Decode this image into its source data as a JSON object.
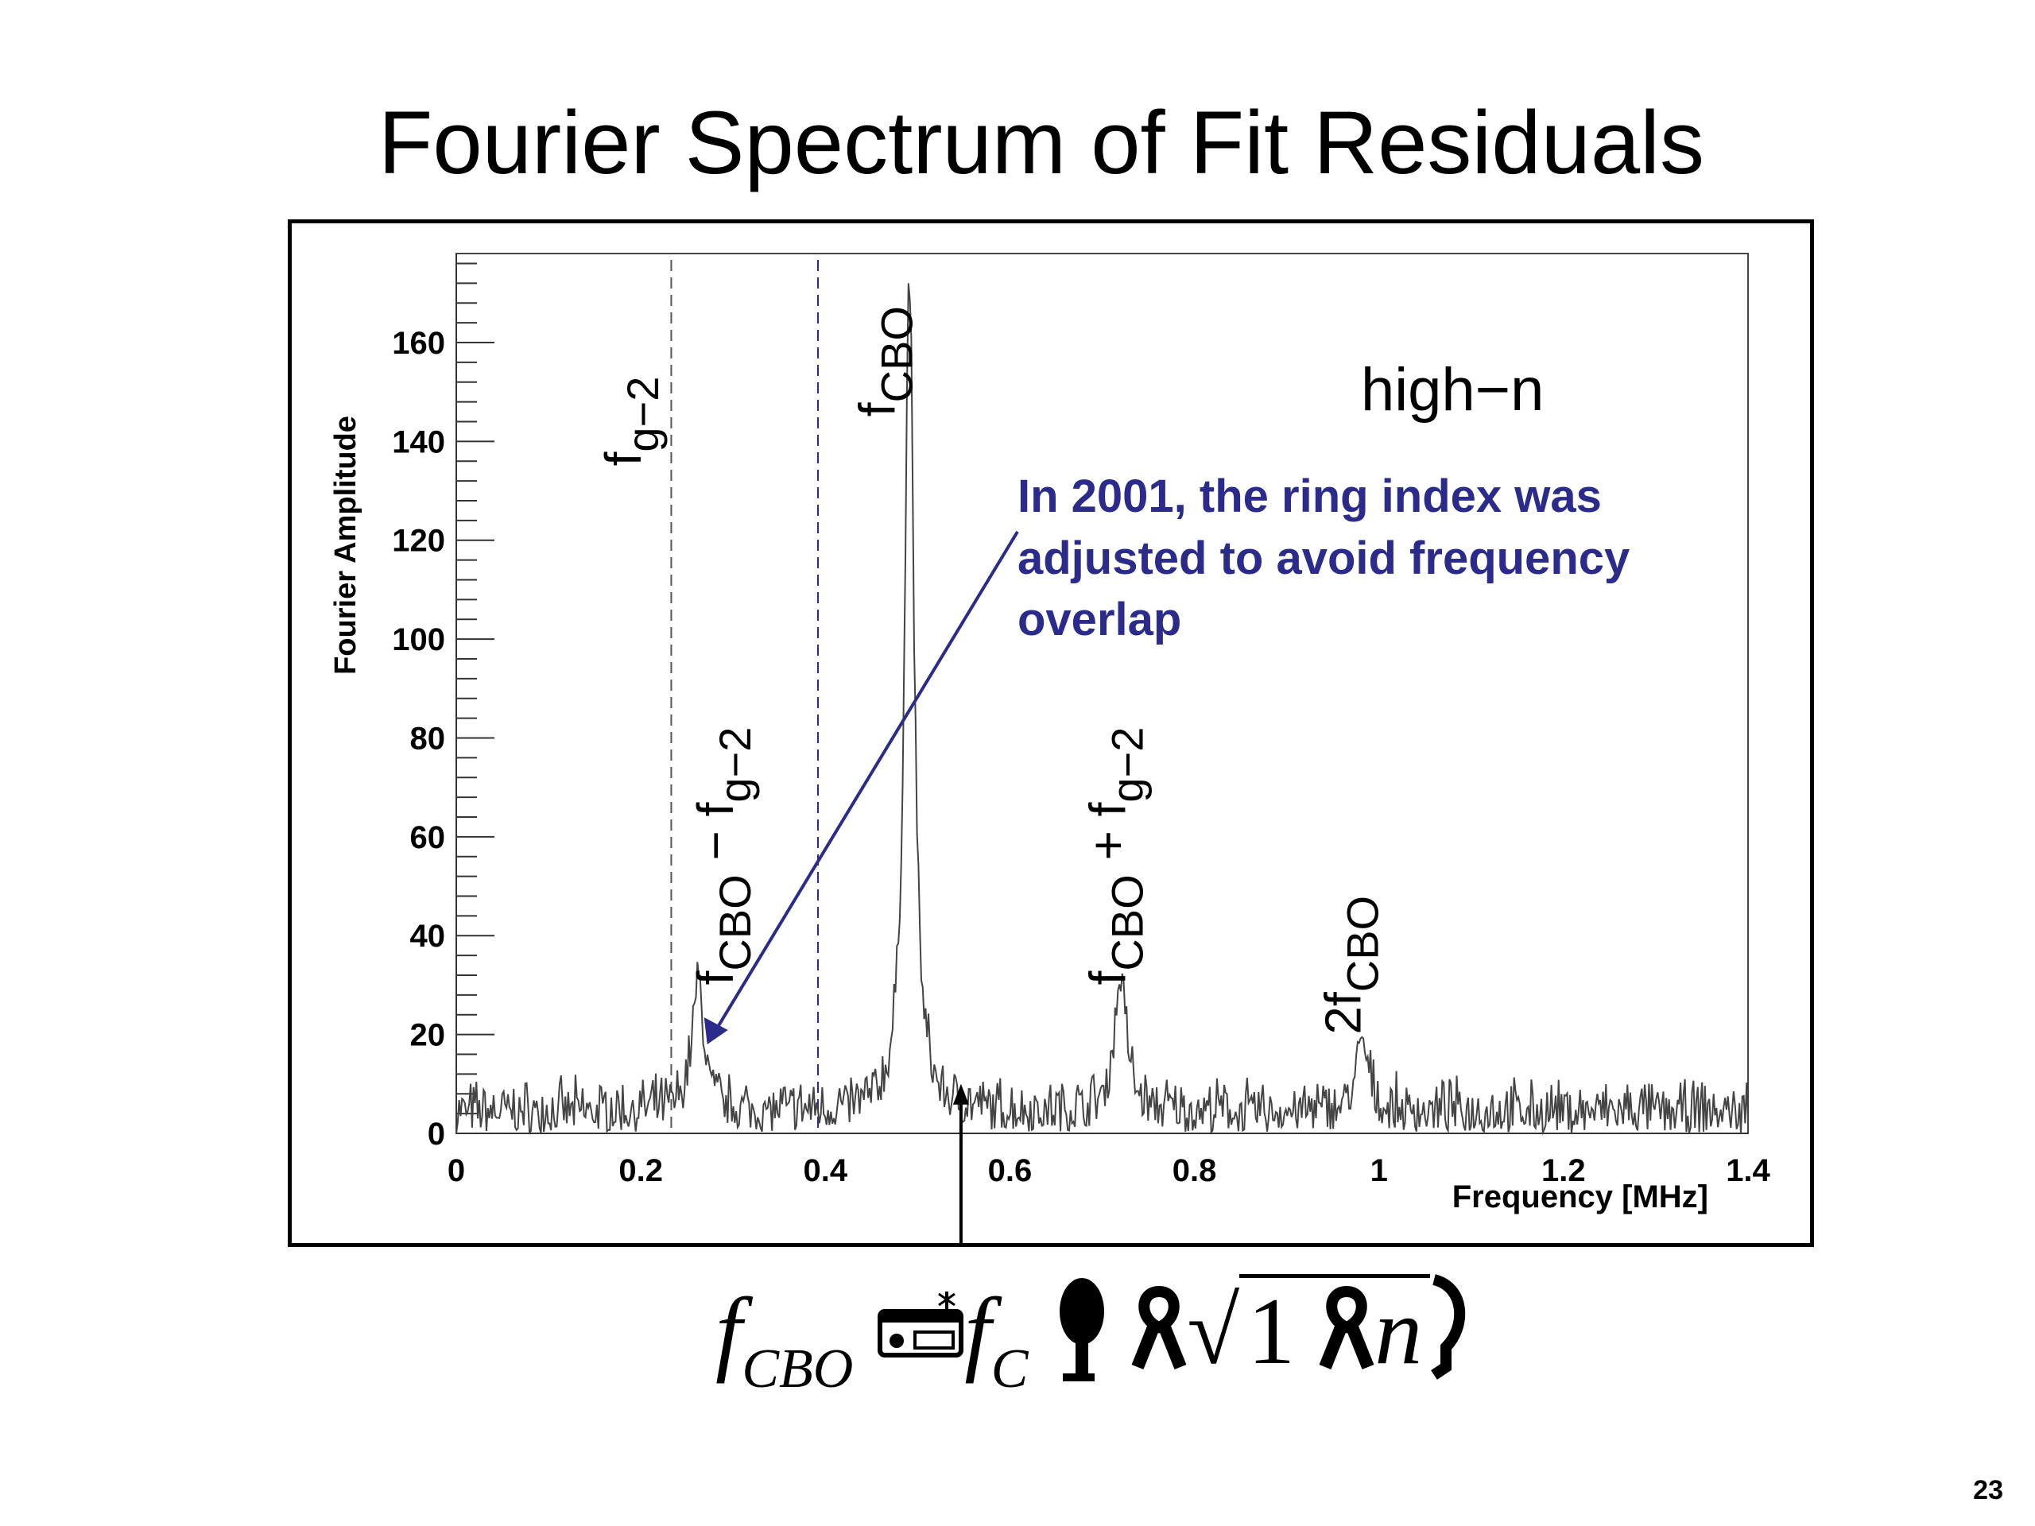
{
  "slide": {
    "title": "Fourier Spectrum of Fit Residuals",
    "page_number": "23",
    "formula": {
      "lhs": "f",
      "lhs_sub": "CBO",
      "rhs": "f",
      "rhs_sub": "C",
      "sqrt_inner_1": "1",
      "sqrt_inner_n": "n"
    }
  },
  "annotation": {
    "line1": "In 2001, the ring index was",
    "line2": "adjusted to avoid frequency",
    "line3": "overlap",
    "color": "#2b2b8c"
  },
  "chart_data": {
    "type": "line",
    "title": "",
    "xlabel": "Frequency [MHz]",
    "ylabel": "Fourier Amplitude",
    "xlim": [
      0,
      1.4
    ],
    "ylim": [
      0,
      178
    ],
    "xticks": [
      "0",
      "0.2",
      "0.4",
      "0.6",
      "0.8",
      "1",
      "1.2",
      "1.4"
    ],
    "xtick_values": [
      0,
      0.2,
      0.4,
      0.6,
      0.8,
      1.0,
      1.2,
      1.4
    ],
    "yticks": [
      "0",
      "20",
      "40",
      "60",
      "80",
      "100",
      "120",
      "140",
      "160"
    ],
    "ytick_values": [
      0,
      20,
      40,
      60,
      80,
      100,
      120,
      140,
      160
    ],
    "grid": false,
    "legend_text": "high−n",
    "legend_placement": "top-right",
    "peaks": [
      {
        "name": "f_CBO - f_g-2",
        "x": 0.262,
        "y": 26
      },
      {
        "name": "f_CBO",
        "x": 0.491,
        "y": 170
      },
      {
        "name": "f_CBO + f_g-2",
        "x": 0.72,
        "y": 28
      },
      {
        "name": "2f_CBO",
        "x": 0.982,
        "y": 14
      }
    ],
    "reference_lines": [
      {
        "name": "f_g-2",
        "x": 0.233,
        "color": "#555555",
        "style": "dashed"
      },
      {
        "name": "dashed-blue",
        "x": 0.392,
        "color": "#2b2b8c",
        "style": "dashed"
      }
    ],
    "peak_labels": [
      {
        "base": "f",
        "sub": "g−2",
        "x": 0.2,
        "y": 135
      },
      {
        "base": "f",
        "sub": "CBO",
        "x": 0.475,
        "y": 145
      },
      {
        "base": "f",
        "sub": "CBO",
        "tail": " − f",
        "tail_sub": "g−2",
        "x": 0.3,
        "y": 30
      },
      {
        "base": "f",
        "sub": "CBO",
        "tail": " + f",
        "tail_sub": "g−2",
        "x": 0.725,
        "y": 30
      },
      {
        "base": "2f",
        "sub": "CBO",
        "x": 0.98,
        "y": 20
      }
    ],
    "noise_level": 6,
    "arrow_black_x": 0.547
  }
}
